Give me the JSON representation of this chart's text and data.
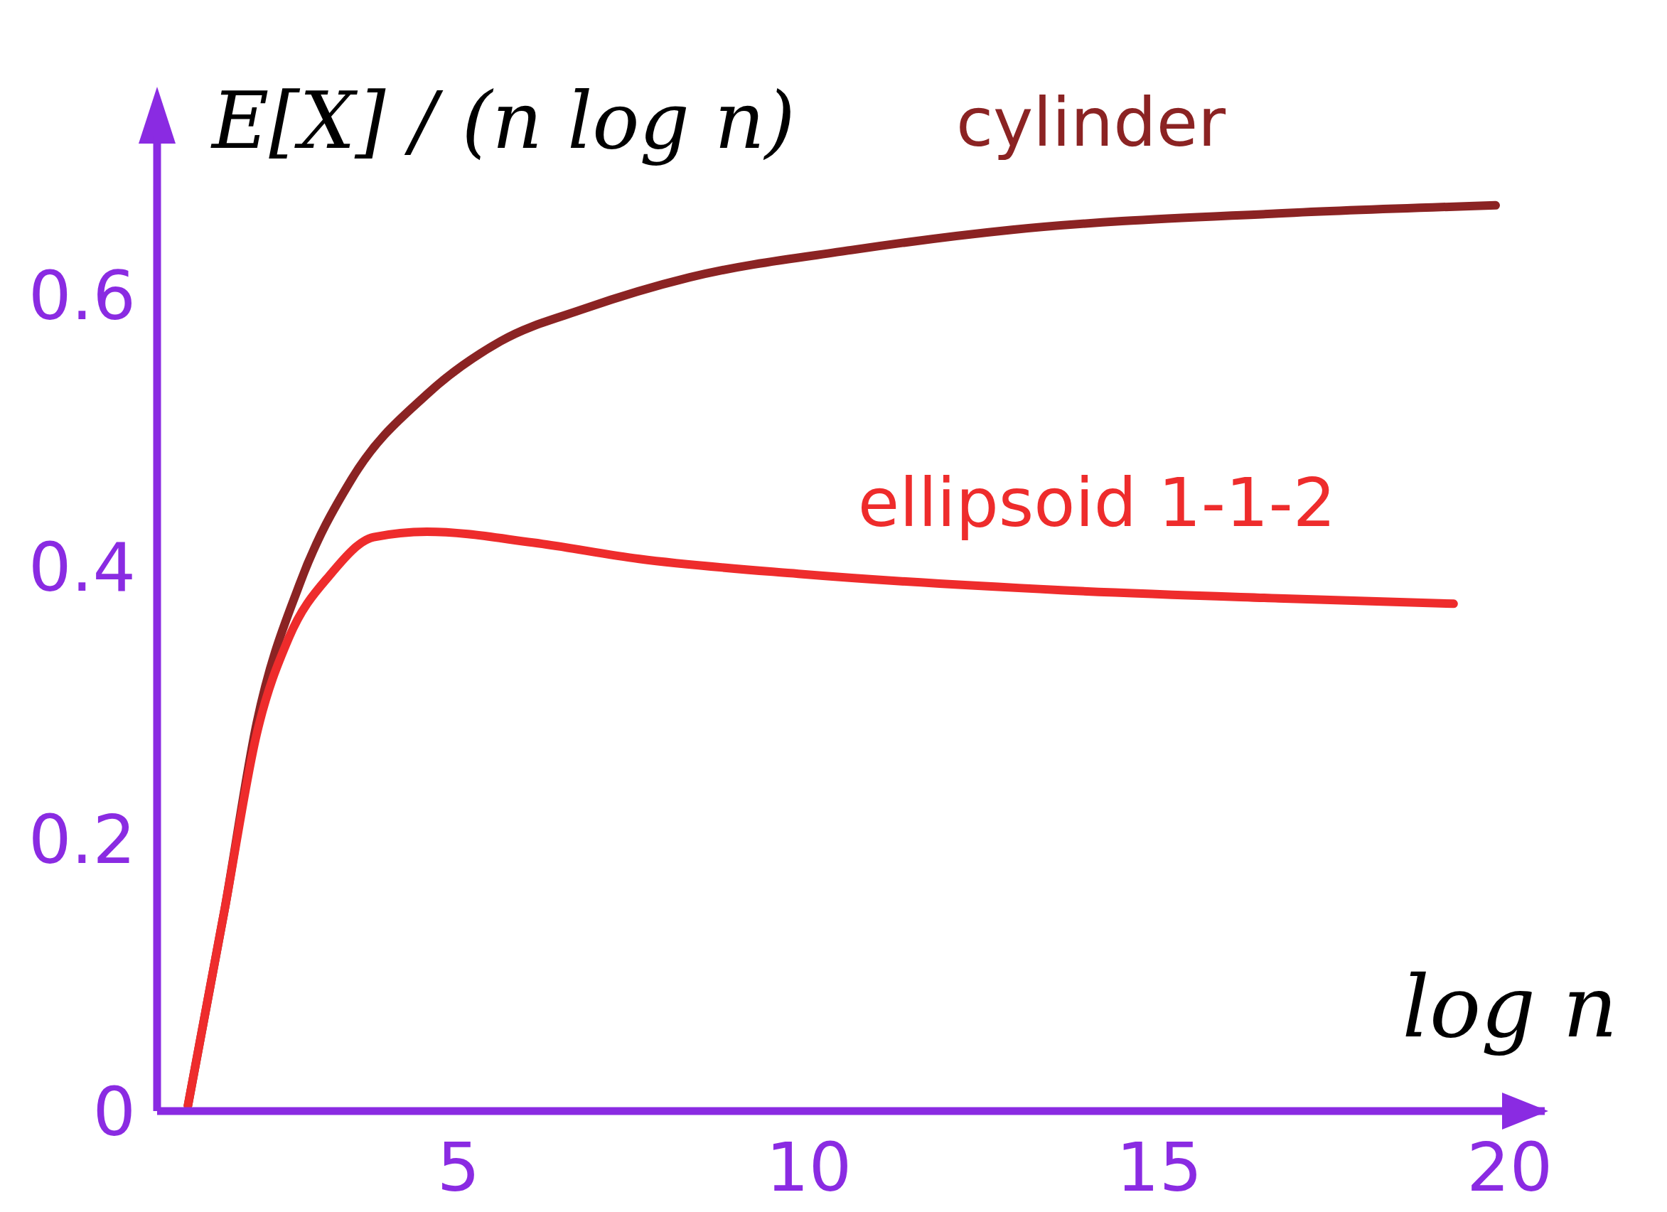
{
  "chart_data": {
    "type": "line",
    "xlabel": "log n",
    "ylabel": "E[X] / (n log n)",
    "xlim": [
      0.7,
      20.5
    ],
    "ylim": [
      0,
      0.68
    ],
    "xticks": [
      5,
      10,
      15,
      20
    ],
    "yticks": [
      0,
      0.2,
      0.4,
      0.6
    ],
    "grid": false,
    "legend": false,
    "marker": "none",
    "line_style": "solid",
    "series": [
      {
        "name": "cylinder",
        "color": "#8b2323",
        "x": [
          1.14,
          1.67,
          2.12,
          2.73,
          3.48,
          4.55,
          5.6,
          6.8,
          8.3,
          10.6,
          12.9,
          16.7,
          19.8
        ],
        "values": [
          0.004,
          0.15,
          0.285,
          0.387,
          0.465,
          0.527,
          0.566,
          0.59,
          0.613,
          0.633,
          0.648,
          0.66,
          0.666
        ]
      },
      {
        "name": "ellipsoid 1-1-2",
        "color": "#ee2c2c",
        "x": [
          1.14,
          1.67,
          2.12,
          2.58,
          3.18,
          3.79,
          4.55,
          6.06,
          7.58,
          9.85,
          13.6,
          16.7,
          19.2
        ],
        "values": [
          0.004,
          0.15,
          0.277,
          0.348,
          0.395,
          0.422,
          0.426,
          0.418,
          0.406,
          0.395,
          0.383,
          0.377,
          0.373
        ]
      }
    ]
  }
}
